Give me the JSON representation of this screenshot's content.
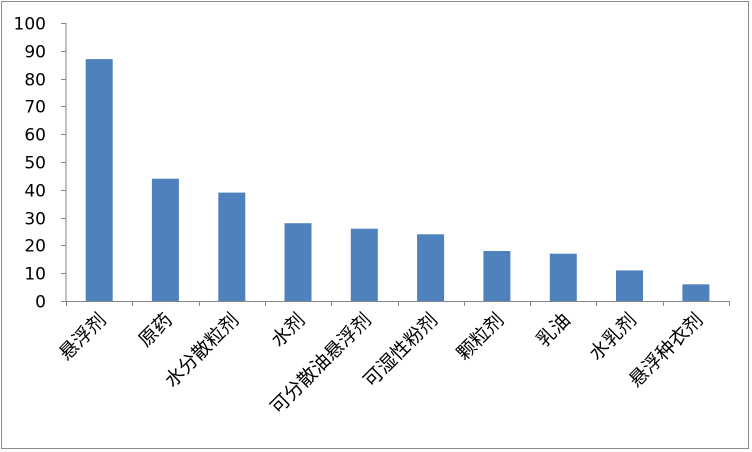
{
  "chart_data": {
    "type": "bar",
    "title": "",
    "xlabel": "",
    "ylabel": "",
    "categories": [
      "悬浮剂",
      "原药",
      "水分散粒剂",
      "水剂",
      "可分散油悬浮剂",
      "可湿性粉剂",
      "颗粒剂",
      "乳油",
      "水乳剂",
      "悬浮种衣剂"
    ],
    "values": [
      87,
      44,
      39,
      28,
      26,
      24,
      18,
      17,
      11,
      6
    ],
    "ylim": [
      0,
      100
    ],
    "yticks": [
      0,
      10,
      20,
      30,
      40,
      50,
      60,
      70,
      80,
      90,
      100
    ],
    "ytick_labels": [
      "0",
      "10",
      "20",
      "30",
      "40",
      "50",
      "60",
      "70",
      "80",
      "90",
      "100"
    ],
    "grid": false,
    "legend": "none",
    "bar_color": "#4f81bd"
  }
}
